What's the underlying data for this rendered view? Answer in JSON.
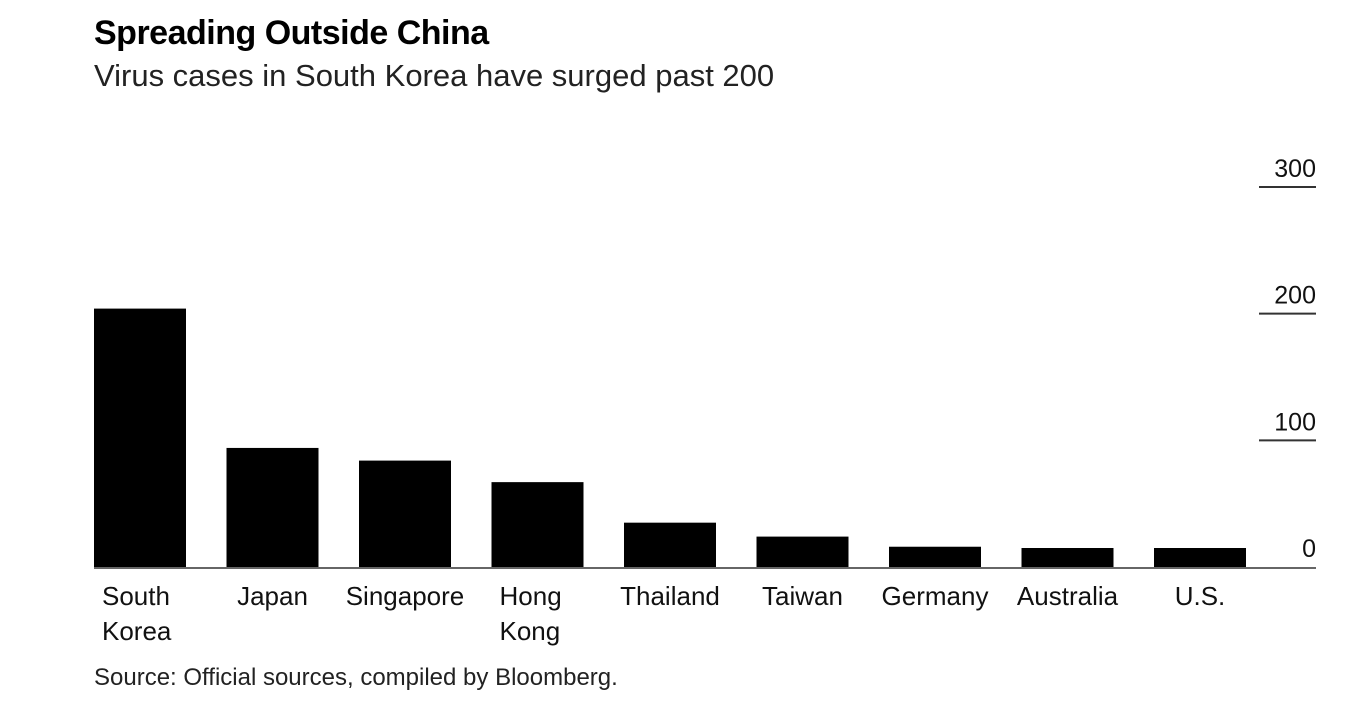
{
  "chart_data": {
    "type": "bar",
    "title": "Spreading Outside China",
    "subtitle": "Virus cases in South Korea have surged past 200",
    "categories": [
      "South Korea",
      "Japan",
      "Singapore",
      "Hong Kong",
      "Thailand",
      "Taiwan",
      "Germany",
      "Australia",
      "U.S."
    ],
    "category_lines": [
      [
        "South",
        "Korea"
      ],
      [
        "Japan"
      ],
      [
        "Singapore"
      ],
      [
        "Hong",
        "Kong"
      ],
      [
        "Thailand"
      ],
      [
        "Taiwan"
      ],
      [
        "Germany"
      ],
      [
        "Australia"
      ],
      [
        "U.S."
      ]
    ],
    "values": [
      204,
      94,
      84,
      67,
      35,
      24,
      16,
      15,
      15
    ],
    "yticks": [
      0,
      100,
      200,
      300
    ],
    "ylim": [
      0,
      300
    ],
    "ylabel": "",
    "xlabel": "",
    "grid": false,
    "bar_color": "#000000",
    "source": "Source: Official sources, compiled by Bloomberg."
  }
}
